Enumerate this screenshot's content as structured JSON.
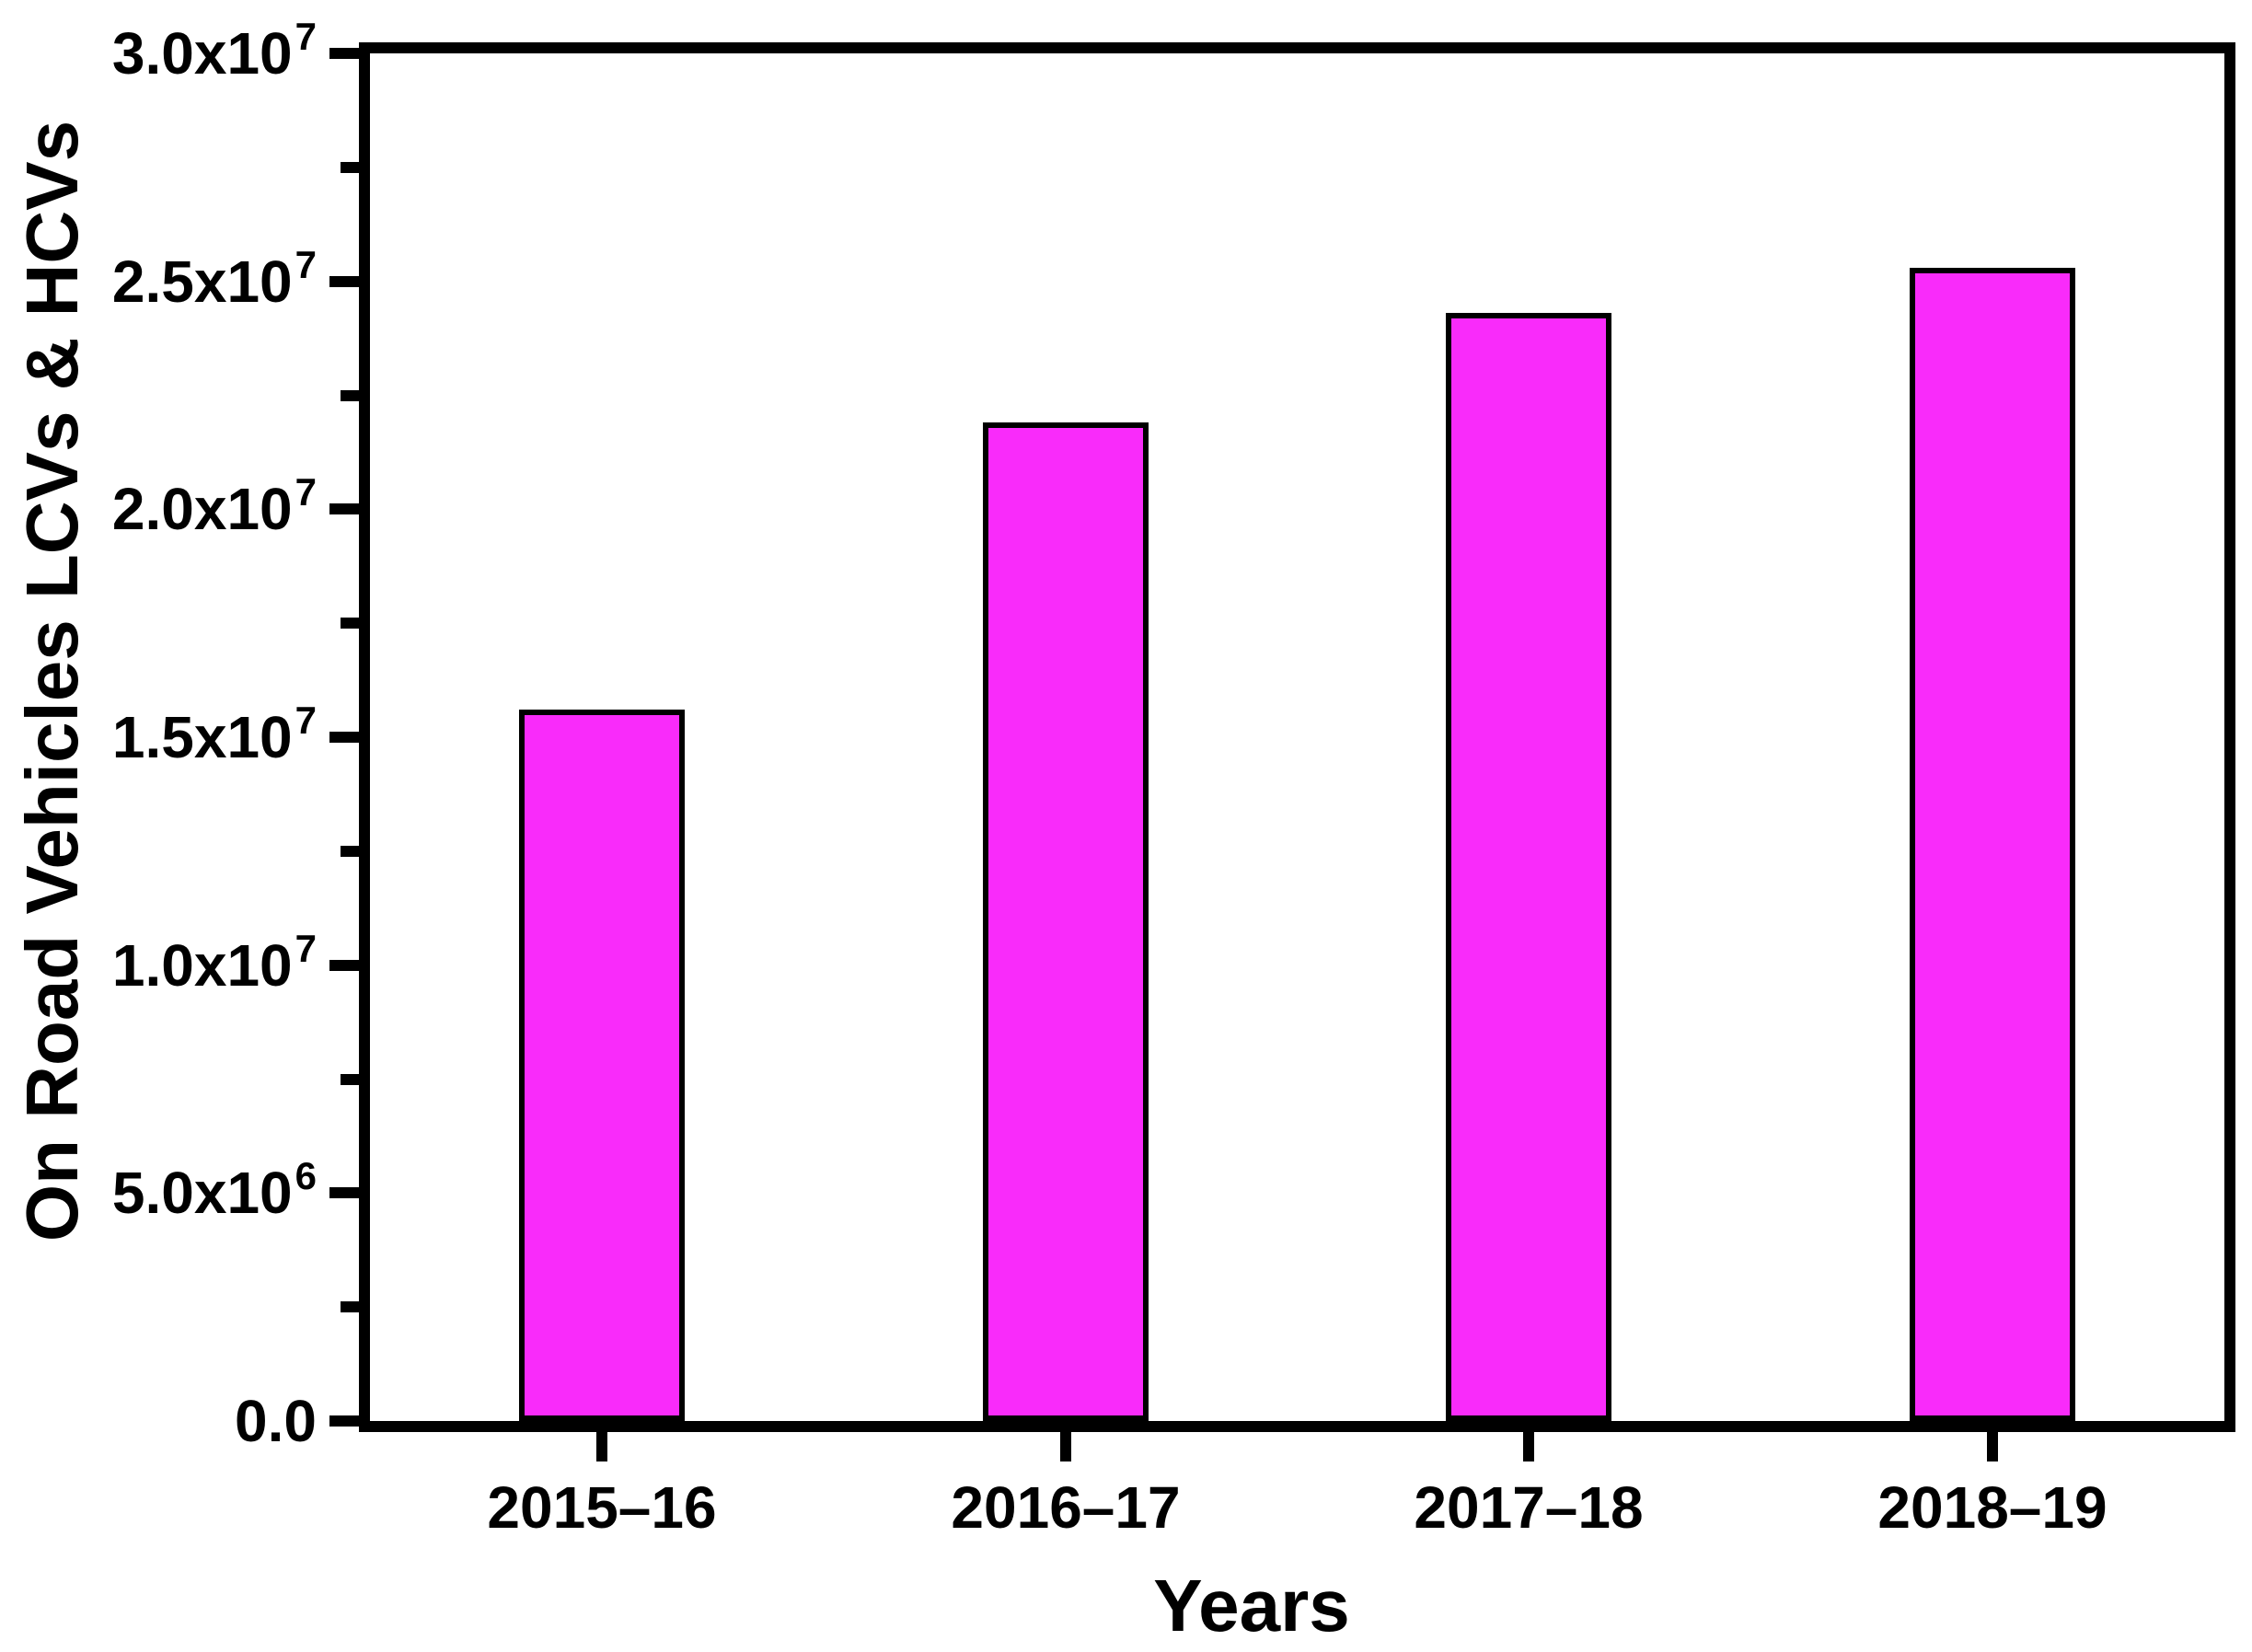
{
  "chart_data": {
    "type": "bar",
    "title": "",
    "xlabel": "Years",
    "ylabel": "On Road Vehicles LCVs & HCVs",
    "categories": [
      "2015–16",
      "2016–17",
      "2017–18",
      "2018–19"
    ],
    "values": [
      15600000,
      21900000,
      24300000,
      25300000
    ],
    "ylim": [
      0,
      30000000
    ],
    "y_major_step": 5000000,
    "y_minor_step": 2500000,
    "y_tick_labels": [
      {
        "mantissa": "0.0",
        "exp": ""
      },
      {
        "mantissa": "5.0x10",
        "exp": "6"
      },
      {
        "mantissa": "1.0x10",
        "exp": "7"
      },
      {
        "mantissa": "1.5x10",
        "exp": "7"
      },
      {
        "mantissa": "2.0x10",
        "exp": "7"
      },
      {
        "mantissa": "2.5x10",
        "exp": "7"
      },
      {
        "mantissa": "3.0x10",
        "exp": "7"
      }
    ],
    "grid": false,
    "legend": null,
    "bar_color": "#F92BFA",
    "bar_border_color": "#000000",
    "axis_color": "#000000",
    "text_color": "#000000"
  }
}
